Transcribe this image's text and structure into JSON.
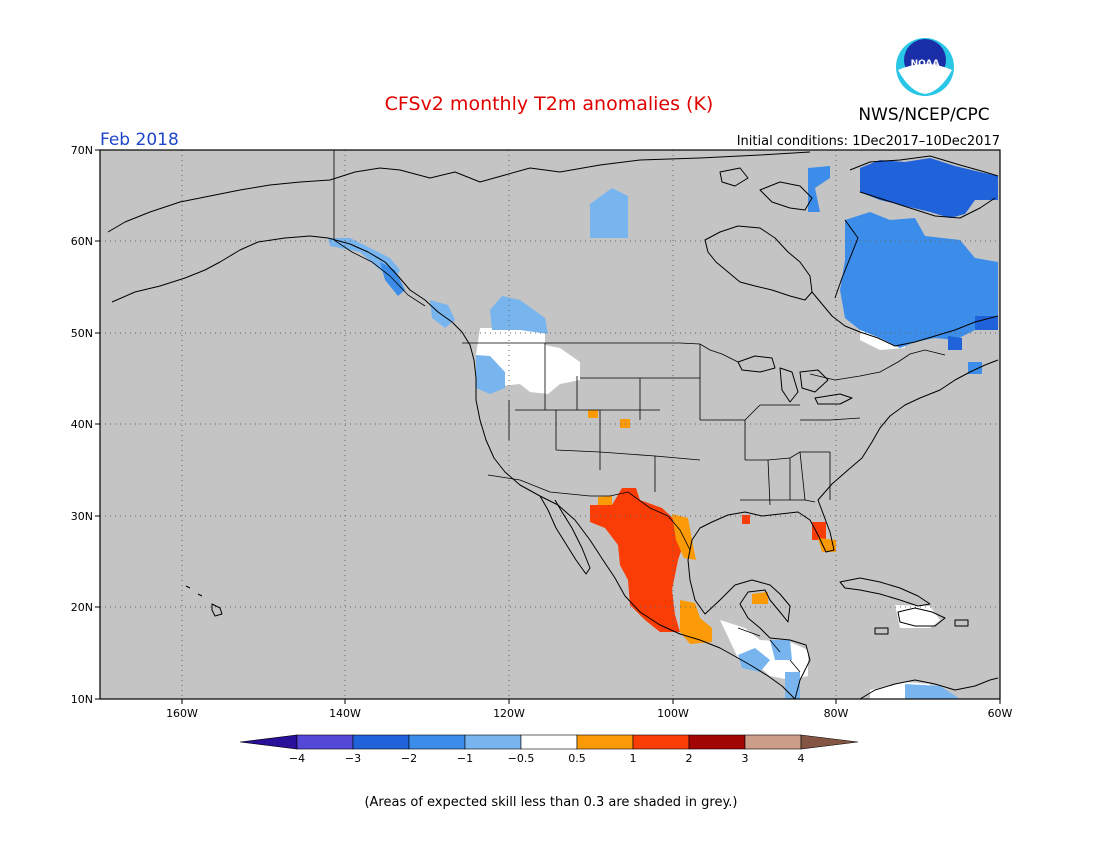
{
  "header": {
    "title": "CFSv2 monthly T2m anomalies (K)",
    "agency": "NWS/NCEP/CPC",
    "logo_text": "NOAA",
    "month": "Feb 2018",
    "initial_conditions": "Initial conditions: 1Dec2017–10Dec2017"
  },
  "axes": {
    "lat_labels": [
      "70N",
      "60N",
      "50N",
      "40N",
      "30N",
      "20N",
      "10N"
    ],
    "lon_labels": [
      "160W",
      "140W",
      "120W",
      "100W",
      "80W",
      "60W"
    ]
  },
  "colorbar": {
    "labels": [
      "−4",
      "−3",
      "−2",
      "−1",
      "−0.5",
      "0.5",
      "1",
      "2",
      "3",
      "4"
    ],
    "colors": [
      "#2a0f9a",
      "#5448d6",
      "#1f62d9",
      "#3b8de9",
      "#78b5ef",
      "#ffffff",
      "#fa9a06",
      "#fa3c06",
      "#a40606",
      "#cc9e8a",
      "#855543"
    ]
  },
  "footnote": "(Areas of expected skill less than 0.3 are shaded in grey.)",
  "colors": {
    "background": "#c4c4c4",
    "title": "#e00000",
    "month": "#1e46c8"
  }
}
